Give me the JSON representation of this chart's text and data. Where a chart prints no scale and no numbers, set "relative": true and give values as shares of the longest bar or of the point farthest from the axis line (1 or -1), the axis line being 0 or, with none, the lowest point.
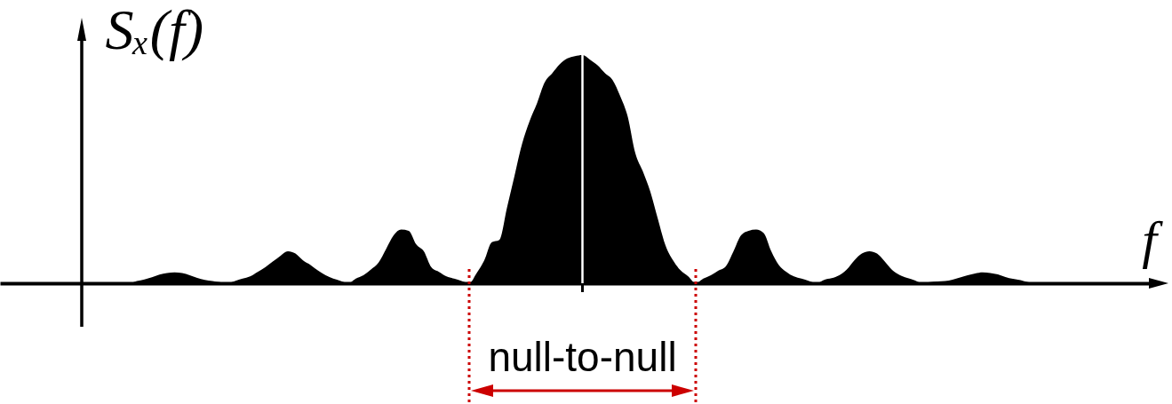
{
  "chart_data": {
    "type": "area",
    "relative": true,
    "ylabel": "Sₓ(f)",
    "xlabel": "f",
    "annotations": [
      "null-to-null"
    ],
    "color": "#000000",
    "categories": [
      null,
      null,
      null,
      null,
      null,
      null,
      null,
      null,
      null,
      null,
      null,
      null,
      null,
      null,
      null,
      null,
      null,
      null,
      null,
      null,
      null,
      null,
      null,
      null,
      null,
      null,
      null,
      null,
      null,
      null,
      null,
      null,
      null,
      null,
      null,
      null,
      null,
      null,
      null,
      null,
      null,
      null,
      null,
      null,
      null,
      null,
      null,
      null,
      null,
      null,
      null,
      null,
      null,
      null,
      null,
      null,
      null,
      null,
      null,
      null,
      null,
      null,
      null,
      null,
      null,
      null,
      null,
      null,
      null,
      null,
      null,
      null,
      null,
      null,
      null,
      null,
      null,
      null,
      null,
      null,
      null,
      null,
      null,
      null,
      null,
      null,
      null,
      null,
      null,
      null,
      null,
      null,
      null,
      null,
      null,
      null,
      null,
      null,
      null,
      null,
      null,
      null,
      null,
      null,
      null,
      null,
      null,
      null,
      null,
      null,
      null,
      null,
      null,
      null,
      null,
      null,
      null,
      null,
      null,
      null,
      null,
      null,
      null
    ],
    "values": [
      0,
      0,
      0.01,
      0.017,
      0.026,
      0.038,
      0.045,
      0.048,
      0.045,
      0.035,
      0.023,
      0.015,
      0.01,
      0.005,
      0,
      0.01,
      0.02,
      0.03,
      0.05,
      0.07,
      0.095,
      0.12,
      0.14,
      0.13,
      0.1,
      0.08,
      0.055,
      0.035,
      0.02,
      0.01,
      0,
      0.02,
      0.035,
      0.06,
      0.09,
      0.15,
      0.21,
      0.235,
      0.23,
      0.17,
      0.14,
      0.07,
      0.05,
      0.03,
      0.02,
      0.01,
      0,
      0.045,
      0.1,
      0.18,
      0.19,
      0.33,
      0.47,
      0.61,
      0.71,
      0.79,
      0.88,
      0.92,
      0.96,
      0.985,
      0.995,
      1,
      0.98,
      0.955,
      0.92,
      0.89,
      0.82,
      0.73,
      0.57,
      0.49,
      0.4,
      0.28,
      0.165,
      0.1,
      0.056,
      0.03,
      0,
      0.02,
      0.035,
      0.055,
      0.075,
      0.14,
      0.21,
      0.23,
      0.235,
      0.22,
      0.14,
      0.08,
      0.05,
      0.03,
      0.02,
      0.01,
      0,
      0.015,
      0.022,
      0.035,
      0.06,
      0.1,
      0.13,
      0.14,
      0.13,
      0.096,
      0.058,
      0.036,
      0.023,
      0.013,
      0,
      0.005,
      0.008,
      0.01,
      0.016,
      0.025,
      0.035,
      0.043,
      0.048,
      0.045,
      0.039,
      0.027,
      0.019,
      0.014,
      0.005,
      0,
      0
    ]
  }
}
